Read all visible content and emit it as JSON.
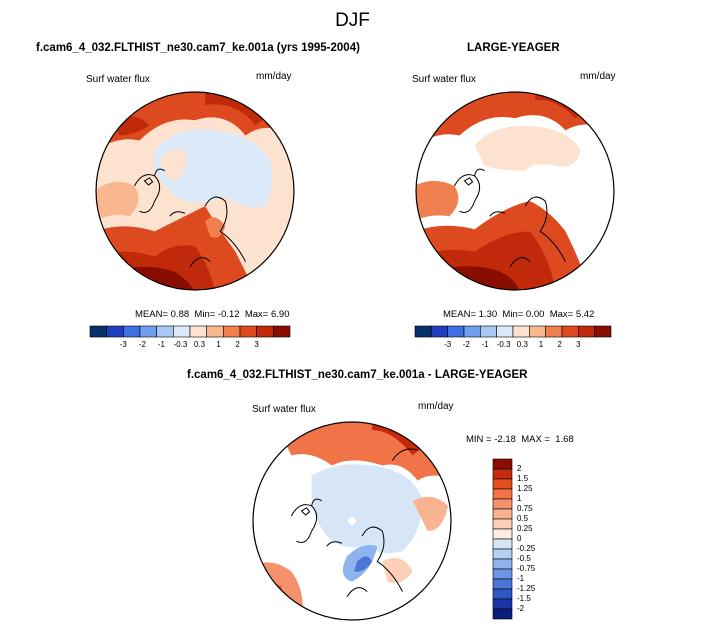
{
  "figure": {
    "title": "DJF",
    "variable": "Surf water flux",
    "units": "mm/day"
  },
  "panels": {
    "test": {
      "title": "f.cam6_4_032.FLTHIST_ne30.cam7_ke.001a (yrs 1995-2004)",
      "variable": "Surf water flux",
      "units": "mm/day",
      "stats": {
        "mean_label": "MEAN=",
        "mean": "0.88",
        "min_label": "Min=",
        "min": "-0.12",
        "max_label": "Max=",
        "max": "6.90"
      }
    },
    "reference": {
      "title": "LARGE-YEAGER",
      "variable": "Surf water flux",
      "units": "mm/day",
      "stats": {
        "mean_label": "MEAN=",
        "mean": "1.30",
        "min_label": "Min=",
        "min": "0.00",
        "max_label": "Max=",
        "max": "5.42"
      }
    },
    "difference": {
      "title": "f.cam6_4_032.FLTHIST_ne30.cam7_ke.001a - LARGE-YEAGER",
      "variable": "Surf water flux",
      "units": "mm/day",
      "stats": {
        "min_label": "MIN =",
        "min": "-2.18",
        "max_label": "MAX =",
        "max": "1.68"
      }
    }
  },
  "colorbars": {
    "absolute": {
      "ticks": [
        "-3",
        "-2",
        "-1",
        "-0.3",
        "0.3",
        "1",
        "2",
        "3"
      ],
      "colors": [
        "#08306b",
        "#1f3fbf",
        "#3f6fe0",
        "#6f9ff0",
        "#a9c8f4",
        "#dce9f8",
        "#fde3cf",
        "#f9b78f",
        "#f08050",
        "#de4a1f",
        "#c02a0a",
        "#8a0d02"
      ]
    },
    "difference": {
      "ticks": [
        "2",
        "1.5",
        "1.25",
        "1",
        "0.75",
        "0.5",
        "0.25",
        "0",
        "-0.25",
        "-0.5",
        "-0.75",
        "-1",
        "-1.25",
        "-1.5",
        "-2"
      ],
      "colors": [
        "#8a0d02",
        "#c42a0b",
        "#e4501e",
        "#f17348",
        "#f5926c",
        "#f8b391",
        "#fbd0b6",
        "#fdeee2",
        "#d6e6f7",
        "#b4cff2",
        "#8fb3ec",
        "#6d95e3",
        "#4b76d8",
        "#2f56c4",
        "#1a36a6",
        "#0a1e7e"
      ]
    }
  }
}
